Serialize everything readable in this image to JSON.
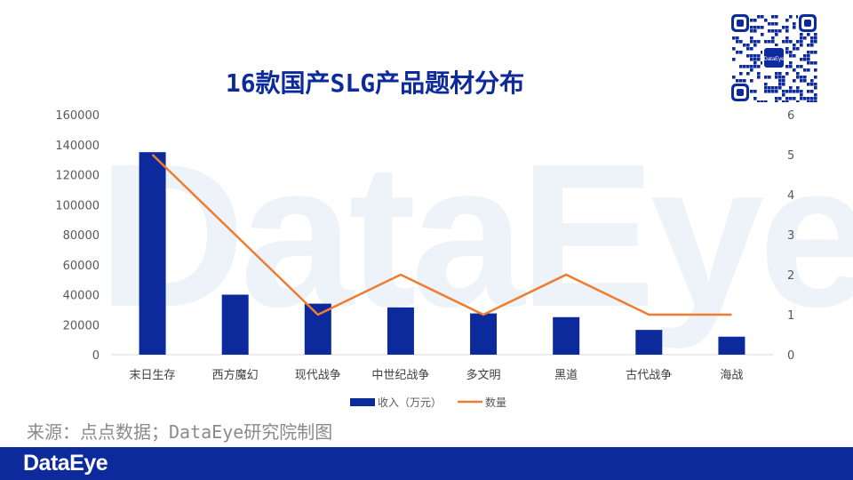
{
  "page": {
    "watermark": "DataEye",
    "source": "来源：点点数据；DataEye研究院制图",
    "footer_logo": "DataEye",
    "qr_logo": "DataEye"
  },
  "chart_data": {
    "type": "bar",
    "title": "16款国产SLG产品题材分布",
    "categories": [
      "末日生存",
      "西方魔幻",
      "现代战争",
      "中世纪战争",
      "多文明",
      "黑道",
      "古代战争",
      "海战"
    ],
    "series": [
      {
        "name": "收入（万元）",
        "type": "bar",
        "axis": "left",
        "color": "#0d2a9c",
        "values": [
          135000,
          40000,
          34000,
          31500,
          27500,
          25000,
          16500,
          12000
        ]
      },
      {
        "name": "数量",
        "type": "line",
        "axis": "right",
        "color": "#ed7d31",
        "values": [
          5,
          3,
          1,
          2,
          1,
          2,
          1,
          1
        ]
      }
    ],
    "y_left": {
      "min": 0,
      "max": 160000,
      "ticks": [
        0,
        20000,
        40000,
        60000,
        80000,
        100000,
        120000,
        140000,
        160000
      ]
    },
    "y_right": {
      "min": 0,
      "max": 6,
      "ticks": [
        0,
        1,
        2,
        3,
        4,
        5,
        6
      ]
    },
    "grid": false,
    "legend": "bottom"
  }
}
